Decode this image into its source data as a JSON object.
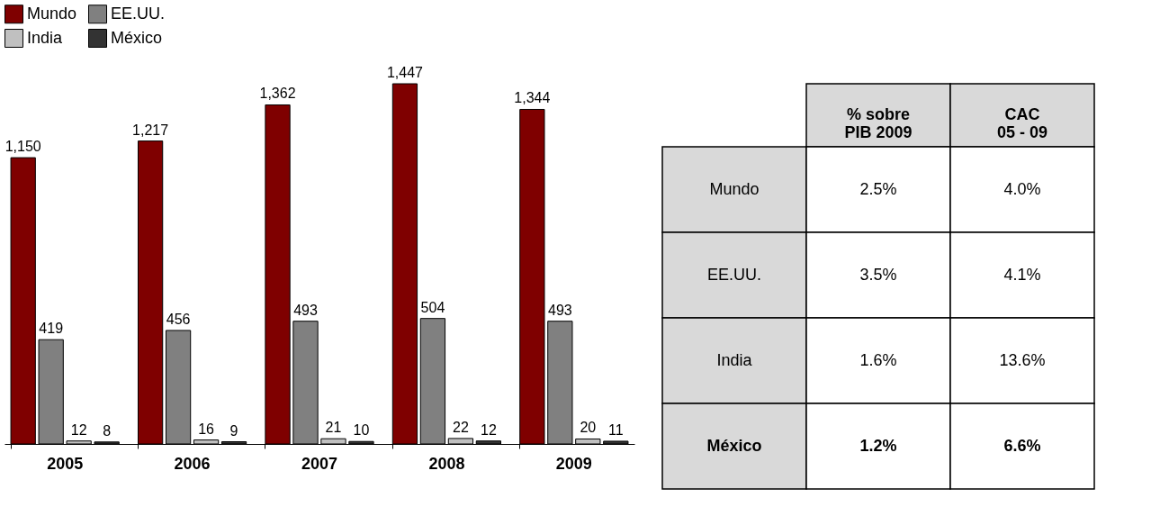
{
  "chart_data": [
    {
      "type": "bar",
      "categories": [
        "2005",
        "2006",
        "2007",
        "2008",
        "2009"
      ],
      "series": [
        {
          "name": "Mundo",
          "color": "#7f0000",
          "values": [
            1150,
            1217,
            1362,
            1447,
            1344
          ],
          "value_labels": [
            "1,150",
            "1,217",
            "1,362",
            "1,447",
            "1,344"
          ]
        },
        {
          "name": "EE.UU.",
          "color": "#808080",
          "values": [
            419,
            456,
            493,
            504,
            493
          ],
          "value_labels": [
            "419",
            "456",
            "493",
            "504",
            "493"
          ]
        },
        {
          "name": "India",
          "color": "#c0c0c0",
          "values": [
            12,
            16,
            21,
            22,
            20
          ],
          "value_labels": [
            "12",
            "16",
            "21",
            "22",
            "20"
          ]
        },
        {
          "name": "México",
          "color": "#333333",
          "values": [
            8,
            9,
            10,
            12,
            11
          ],
          "value_labels": [
            "8",
            "9",
            "10",
            "12",
            "11"
          ]
        }
      ],
      "legend": "top left",
      "grid": false
    },
    {
      "type": "other",
      "annotations": [
        "% sobre\nPIB 2009",
        "CAC\n05 - 09",
        "Mundo",
        "2.5%",
        "4.0%",
        "EE.UU.",
        "3.5%",
        "4.1%",
        "India",
        "1.6%",
        "13.6%",
        "México",
        "1.2%",
        "6.6%"
      ]
    }
  ]
}
